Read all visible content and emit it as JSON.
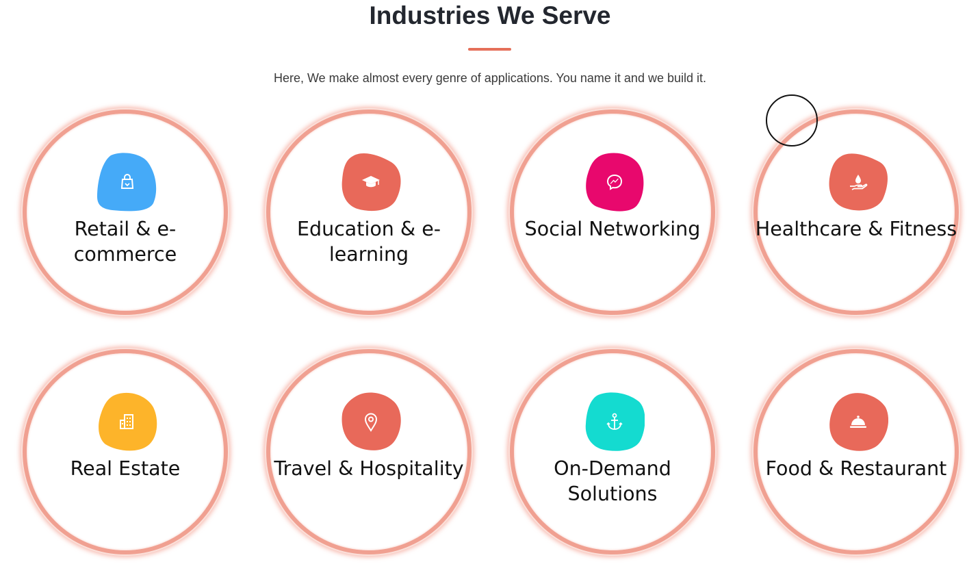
{
  "section": {
    "title": "Industries We Serve",
    "subtitle": "Here, We make almost every genre of applications. You name it and we build it.",
    "accent_color": "#e56f59"
  },
  "industries": [
    {
      "label_line1": "Retail & e-",
      "label_line2": "commerce",
      "icon": "shopping-bag-icon",
      "color": "#45aaf8"
    },
    {
      "label_line1": "Education & e-",
      "label_line2": "learning",
      "icon": "graduation-cap-icon",
      "color": "#e8695a"
    },
    {
      "label_line1": "Social Networking",
      "label_line2": "",
      "icon": "messenger-icon",
      "color": "#e8086d"
    },
    {
      "label_line1": "Healthcare & Fitness",
      "label_line2": "",
      "icon": "hand-drop-icon",
      "color": "#e8695a"
    },
    {
      "label_line1": "Real Estate",
      "label_line2": "",
      "icon": "building-icon",
      "color": "#fdb42a"
    },
    {
      "label_line1": "Travel & Hospitality",
      "label_line2": "",
      "icon": "map-pin-icon",
      "color": "#e8695a"
    },
    {
      "label_line1": "On-Demand",
      "label_line2": "Solutions",
      "icon": "anchor-icon",
      "color": "#14dbd0"
    },
    {
      "label_line1": "Food & Restaurant",
      "label_line2": "",
      "icon": "cloche-icon",
      "color": "#e8695a"
    }
  ]
}
